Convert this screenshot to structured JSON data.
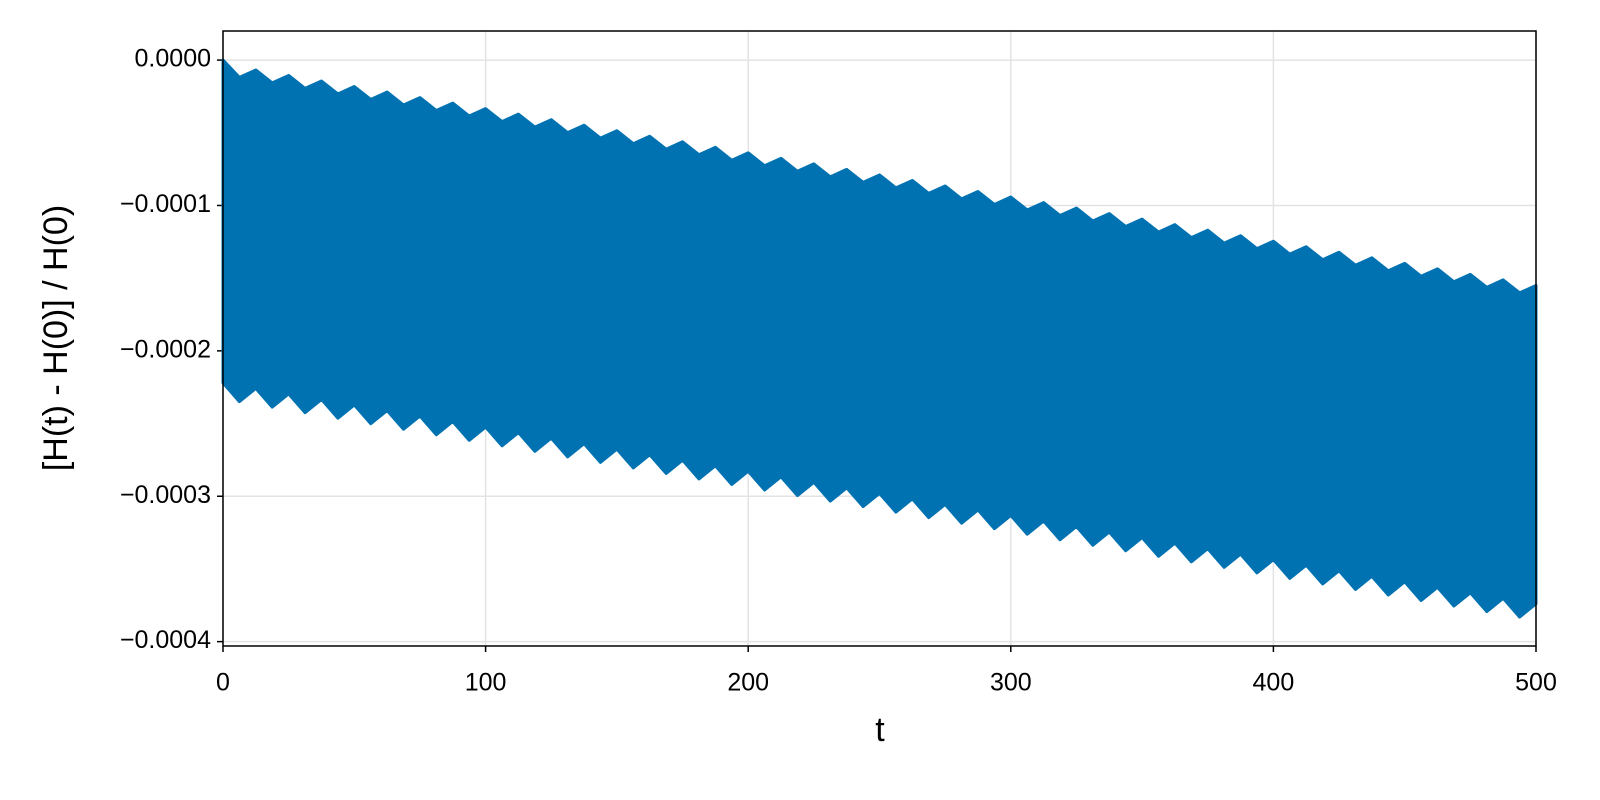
{
  "chart_data": {
    "type": "band",
    "xlabel": "t",
    "ylabel": "[H(t) - H(0)] / H(0)",
    "color": "#0072b2",
    "grid": true,
    "xlim": [
      0,
      500
    ],
    "xticks": [
      0,
      100,
      200,
      300,
      400,
      500
    ],
    "ylim": [
      -0.000403,
      2e-05
    ],
    "yticks": [
      {
        "value": 0,
        "label": "0.0000"
      },
      {
        "value": -0.0001,
        "label": "−0.0001"
      },
      {
        "value": -0.0002,
        "label": "−0.0002"
      },
      {
        "value": -0.0003,
        "label": "−0.0003"
      },
      {
        "value": -0.0004,
        "label": "−0.0004"
      }
    ],
    "x": [
      0,
      6.25,
      12.5,
      18.75,
      25,
      31.25,
      37.5,
      43.75,
      50,
      56.25,
      62.5,
      68.75,
      75,
      81.25,
      87.5,
      93.75,
      100,
      106.25,
      112.5,
      118.75,
      125,
      131.25,
      137.5,
      143.75,
      150,
      156.25,
      162.5,
      168.75,
      175,
      181.25,
      187.5,
      193.75,
      200,
      206.25,
      212.5,
      218.75,
      225,
      231.25,
      237.5,
      243.75,
      250,
      256.25,
      262.5,
      268.75,
      275,
      281.25,
      287.5,
      293.75,
      300,
      306.25,
      312.5,
      318.75,
      325,
      331.25,
      337.5,
      343.75,
      350,
      356.25,
      362.5,
      368.75,
      375,
      381.25,
      387.5,
      393.75,
      400,
      406.25,
      412.5,
      418.75,
      425,
      431.25,
      437.5,
      443.75,
      450,
      456.25,
      462.5,
      468.75,
      475,
      481.25,
      487.5,
      493.75,
      500
    ],
    "upper": [
      0,
      -1.19e-05,
      -6.8e-06,
      -1.57e-05,
      -1.06e-05,
      -1.95e-05,
      -1.44e-05,
      -2.33e-05,
      -1.82e-05,
      -2.71e-05,
      -2.2e-05,
      -3.09e-05,
      -2.58e-05,
      -3.47e-05,
      -2.96e-05,
      -3.85e-05,
      -3.34e-05,
      -4.23e-05,
      -3.72e-05,
      -4.61e-05,
      -4.1e-05,
      -4.99e-05,
      -4.48e-05,
      -5.37e-05,
      -4.86e-05,
      -5.75e-05,
      -5.24e-05,
      -6.13e-05,
      -5.62e-05,
      -6.51e-05,
      -6e-05,
      -6.89e-05,
      -6.38e-05,
      -7.27e-05,
      -6.76e-05,
      -7.65e-05,
      -7.14e-05,
      -8.03e-05,
      -7.52e-05,
      -8.41e-05,
      -7.9e-05,
      -8.79e-05,
      -8.28e-05,
      -9.17e-05,
      -8.66e-05,
      -9.55e-05,
      -9.04e-05,
      -9.93e-05,
      -9.42e-05,
      -0.0001031,
      -9.8e-05,
      -0.0001069,
      -0.0001018,
      -0.0001107,
      -0.0001056,
      -0.0001145,
      -0.0001094,
      -0.0001183,
      -0.0001132,
      -0.0001221,
      -0.000117,
      -0.0001259,
      -0.0001208,
      -0.0001297,
      -0.0001246,
      -0.0001335,
      -0.0001284,
      -0.0001373,
      -0.0001322,
      -0.0001411,
      -0.000136,
      -0.0001449,
      -0.0001398,
      -0.0001487,
      -0.0001436,
      -0.0001525,
      -0.0001474,
      -0.0001563,
      -0.0001512,
      -0.0001601,
      -0.000155
    ],
    "lower": [
      -0.000222,
      -0.0002349,
      -0.0002258,
      -0.0002387,
      -0.0002296,
      -0.0002425,
      -0.0002334,
      -0.0002463,
      -0.0002372,
      -0.0002501,
      -0.000241,
      -0.0002539,
      -0.0002448,
      -0.0002577,
      -0.0002486,
      -0.0002615,
      -0.0002524,
      -0.0002653,
      -0.0002562,
      -0.0002691,
      -0.00026,
      -0.0002729,
      -0.0002638,
      -0.0002767,
      -0.0002676,
      -0.0002805,
      -0.0002714,
      -0.0002843,
      -0.0002752,
      -0.0002881,
      -0.000279,
      -0.0002919,
      -0.0002828,
      -0.0002957,
      -0.0002866,
      -0.0002995,
      -0.0002904,
      -0.0003033,
      -0.0002942,
      -0.0003071,
      -0.000298,
      -0.0003109,
      -0.0003018,
      -0.0003147,
      -0.0003056,
      -0.0003185,
      -0.0003094,
      -0.0003223,
      -0.0003132,
      -0.0003261,
      -0.000317,
      -0.0003299,
      -0.0003208,
      -0.0003337,
      -0.0003246,
      -0.0003375,
      -0.0003284,
      -0.0003413,
      -0.0003322,
      -0.0003451,
      -0.000336,
      -0.0003489,
      -0.0003398,
      -0.0003527,
      -0.0003436,
      -0.0003565,
      -0.0003474,
      -0.0003603,
      -0.0003512,
      -0.0003641,
      -0.000355,
      -0.0003679,
      -0.0003588,
      -0.0003717,
      -0.0003626,
      -0.0003755,
      -0.0003664,
      -0.0003793,
      -0.0003702,
      -0.0003831,
      -0.000374
    ]
  }
}
